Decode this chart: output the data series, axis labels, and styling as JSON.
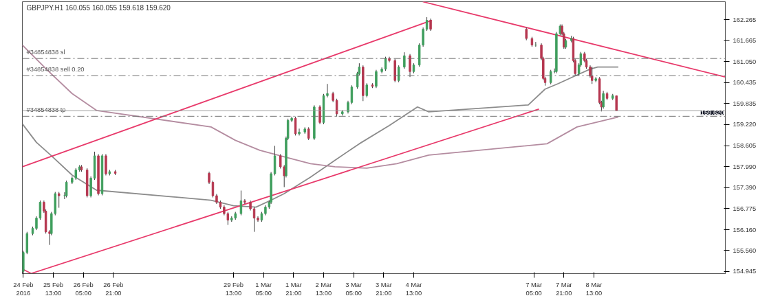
{
  "chart_data": {
    "type": "candlestick",
    "title": "GBPJPY.H1 160.055 160.055 159.618 159.620",
    "x": [
      "2016-02-24T21:00",
      "2016-02-24T23:00",
      "2016-02-25T02:00",
      "2016-02-25T04:00",
      "2016-02-25T06:00",
      "2016-02-25T08:00",
      "2016-02-25T09:00",
      "2016-02-25T11:00",
      "2016-02-25T12:00",
      "2016-02-25T14:00",
      "2016-02-25T16:00",
      "2016-02-25T19:00",
      "2016-02-25T20:00",
      "2016-02-25T23:00",
      "2016-02-26T01:00",
      "2016-02-26T03:00",
      "2016-02-26T04:00",
      "2016-02-26T07:00",
      "2016-02-26T09:00",
      "2016-02-26T11:00",
      "2016-02-26T13:00",
      "2016-02-26T15:00",
      "2016-02-26T17:00",
      "2016-02-26T19:00",
      "2016-02-26T22:00",
      "2016-02-29T00:00",
      "2016-02-29T02:00",
      "2016-02-29T04:00",
      "2016-02-29T06:00",
      "2016-02-29T08:00",
      "2016-02-29T10:00",
      "2016-02-29T12:00",
      "2016-02-29T14:00",
      "2016-02-29T17:00",
      "2016-02-29T19:00",
      "2016-02-29T22:00",
      "2016-03-01T00:00",
      "2016-03-01T02:00",
      "2016-03-01T04:00",
      "2016-03-01T06:00",
      "2016-03-01T08:00",
      "2016-03-01T09:00",
      "2016-03-01T11:00",
      "2016-03-01T14:00",
      "2016-03-01T16:00",
      "2016-03-01T17:00",
      "2016-03-01T18:00",
      "2016-03-01T20:00",
      "2016-03-01T22:00",
      "2016-03-02T00:00",
      "2016-03-02T03:00",
      "2016-03-02T05:00",
      "2016-03-02T08:00",
      "2016-03-02T11:00",
      "2016-03-02T13:00",
      "2016-03-02T15:00",
      "2016-03-02T18:00",
      "2016-03-02T20:00",
      "2016-03-02T23:00",
      "2016-03-03T02:00",
      "2016-03-03T04:00",
      "2016-03-03T07:00",
      "2016-03-03T08:00",
      "2016-03-03T10:00",
      "2016-03-03T12:00",
      "2016-03-03T15:00",
      "2016-03-03T17:00",
      "2016-03-03T20:00",
      "2016-03-03T22:00",
      "2016-03-04T00:00",
      "2016-03-04T03:00",
      "2016-03-04T05:00",
      "2016-03-04T08:00",
      "2016-03-04T11:00",
      "2016-03-04T13:00",
      "2016-03-04T16:00",
      "2016-03-04T18:00",
      "2016-03-04T20:00",
      "2016-03-04T22:00",
      "2016-03-07T01:00",
      "2016-03-07T04:00",
      "2016-03-07T06:00",
      "2016-03-07T09:00",
      "2016-03-07T10:00",
      "2016-03-07T11:00",
      "2016-03-07T14:00",
      "2016-03-07T16:00",
      "2016-03-07T17:00",
      "2016-03-07T19:00",
      "2016-03-07T20:00",
      "2016-03-07T21:00",
      "2016-03-07T22:00",
      "2016-03-08T01:00",
      "2016-03-08T02:00",
      "2016-03-08T03:00",
      "2016-03-08T05:00",
      "2016-03-08T06:00",
      "2016-03-08T08:00",
      "2016-03-08T09:00",
      "2016-03-08T11:00",
      "2016-03-08T12:00",
      "2016-03-08T14:00",
      "2016-03-08T16:00",
      "2016-03-08T17:00",
      "2016-03-08T18:00",
      "2016-03-08T20:00",
      "2016-03-08T23:00",
      "2016-03-09T01:00"
    ],
    "ohlc": [
      [
        154.95,
        155.55,
        154.9,
        155.5
      ],
      [
        155.5,
        156.1,
        155.45,
        156.05
      ],
      [
        156.05,
        156.25,
        156.0,
        156.2
      ],
      [
        156.2,
        156.55,
        156.15,
        156.5
      ],
      [
        156.5,
        157.01,
        156.45,
        156.96
      ],
      [
        156.96,
        157.01,
        156.65,
        156.7
      ],
      [
        156.7,
        156.75,
        156.05,
        156.1
      ],
      [
        156.1,
        156.15,
        155.72,
        156.05
      ],
      [
        156.05,
        156.68,
        156.0,
        156.63
      ],
      [
        156.63,
        157.26,
        156.58,
        157.21
      ],
      [
        157.21,
        157.26,
        156.8,
        157.15
      ],
      [
        157.15,
        157.25,
        157.05,
        157.15
      ],
      [
        157.15,
        157.59,
        157.1,
        157.54
      ],
      [
        157.54,
        157.71,
        157.49,
        157.66
      ],
      [
        157.66,
        157.95,
        157.61,
        157.9
      ],
      [
        157.9,
        158.04,
        157.85,
        157.99
      ],
      [
        157.99,
        158.04,
        157.85,
        157.9
      ],
      [
        157.9,
        157.95,
        157.1,
        157.15
      ],
      [
        157.15,
        157.71,
        157.1,
        157.66
      ],
      [
        157.66,
        158.43,
        157.61,
        158.31
      ],
      [
        158.31,
        158.36,
        157.16,
        157.21
      ],
      [
        157.21,
        158.36,
        157.16,
        158.31
      ],
      [
        158.31,
        158.36,
        157.74,
        157.79
      ],
      [
        157.79,
        157.9,
        157.74,
        157.85
      ],
      [
        157.85,
        157.9,
        157.75,
        157.8
      ],
      [
        157.8,
        157.85,
        157.49,
        157.54
      ],
      [
        157.54,
        157.59,
        157.1,
        157.15
      ],
      [
        157.15,
        157.2,
        156.91,
        156.96
      ],
      [
        156.96,
        157.01,
        156.77,
        156.82
      ],
      [
        156.82,
        156.87,
        156.58,
        156.63
      ],
      [
        156.63,
        156.68,
        156.3,
        156.44
      ],
      [
        156.44,
        156.55,
        156.39,
        156.5
      ],
      [
        156.5,
        156.68,
        156.45,
        156.63
      ],
      [
        156.63,
        157.3,
        156.58,
        157.0
      ],
      [
        157.0,
        157.05,
        156.91,
        156.96
      ],
      [
        156.96,
        157.01,
        156.72,
        156.77
      ],
      [
        156.77,
        156.82,
        156.1,
        156.5
      ],
      [
        156.5,
        156.55,
        156.39,
        156.44
      ],
      [
        156.44,
        156.68,
        156.39,
        156.63
      ],
      [
        156.63,
        156.87,
        156.58,
        156.82
      ],
      [
        156.82,
        157.01,
        156.77,
        156.96
      ],
      [
        156.96,
        157.84,
        156.91,
        157.79
      ],
      [
        157.79,
        158.6,
        157.74,
        158.31
      ],
      [
        158.31,
        158.36,
        157.94,
        157.99
      ],
      [
        157.99,
        158.04,
        157.4,
        157.73
      ],
      [
        157.73,
        158.87,
        157.68,
        158.82
      ],
      [
        158.82,
        159.39,
        158.77,
        159.34
      ],
      [
        159.34,
        159.45,
        159.29,
        159.4
      ],
      [
        159.4,
        159.45,
        158.9,
        158.95
      ],
      [
        158.95,
        159.1,
        158.9,
        159.0
      ],
      [
        159.0,
        159.14,
        158.95,
        159.09
      ],
      [
        159.09,
        159.14,
        158.77,
        158.82
      ],
      [
        158.82,
        159.78,
        158.77,
        159.73
      ],
      [
        159.73,
        159.78,
        159.23,
        159.28
      ],
      [
        159.28,
        160.11,
        159.23,
        160.06
      ],
      [
        160.06,
        160.4,
        160.01,
        160.12
      ],
      [
        160.12,
        160.17,
        159.87,
        159.92
      ],
      [
        159.92,
        159.97,
        159.45,
        159.53
      ],
      [
        159.53,
        159.64,
        159.48,
        159.59
      ],
      [
        159.59,
        159.91,
        159.54,
        159.86
      ],
      [
        159.86,
        160.36,
        159.81,
        160.31
      ],
      [
        160.31,
        160.75,
        160.26,
        160.7
      ],
      [
        160.7,
        161.0,
        160.65,
        160.89
      ],
      [
        160.89,
        160.94,
        159.9,
        160.06
      ],
      [
        160.06,
        160.42,
        160.01,
        160.37
      ],
      [
        160.37,
        160.42,
        160.28,
        160.33
      ],
      [
        160.33,
        160.81,
        160.28,
        160.76
      ],
      [
        160.76,
        160.88,
        160.71,
        160.83
      ],
      [
        160.83,
        161.19,
        160.78,
        161.14
      ],
      [
        161.14,
        161.19,
        161.03,
        161.08
      ],
      [
        161.08,
        161.13,
        160.45,
        160.5
      ],
      [
        160.5,
        160.94,
        160.45,
        160.89
      ],
      [
        160.89,
        161.32,
        160.84,
        161.22
      ],
      [
        161.22,
        161.27,
        160.6,
        160.76
      ],
      [
        160.76,
        161.0,
        160.71,
        160.95
      ],
      [
        160.95,
        161.58,
        160.9,
        161.53
      ],
      [
        161.53,
        162.04,
        161.48,
        161.99
      ],
      [
        161.99,
        162.34,
        161.94,
        162.25
      ],
      [
        162.25,
        162.3,
        161.94,
        161.99
      ],
      [
        161.99,
        162.04,
        161.67,
        161.72
      ],
      [
        161.72,
        161.77,
        161.48,
        161.53
      ],
      [
        161.53,
        161.62,
        161.48,
        161.53
      ],
      [
        161.53,
        161.58,
        161.09,
        161.14
      ],
      [
        161.14,
        161.19,
        160.51,
        160.56
      ],
      [
        160.56,
        160.61,
        160.35,
        160.44
      ],
      [
        160.44,
        160.81,
        160.39,
        160.76
      ],
      [
        160.76,
        160.85,
        160.71,
        160.76
      ],
      [
        160.76,
        161.91,
        160.71,
        161.86
      ],
      [
        161.86,
        162.13,
        161.81,
        162.08
      ],
      [
        162.08,
        162.13,
        161.81,
        161.86
      ],
      [
        161.86,
        161.91,
        161.42,
        161.47
      ],
      [
        161.47,
        161.71,
        161.42,
        161.66
      ],
      [
        161.66,
        161.8,
        161.61,
        161.72
      ],
      [
        161.72,
        161.77,
        161.03,
        161.08
      ],
      [
        161.08,
        161.13,
        160.65,
        160.7
      ],
      [
        160.7,
        161.0,
        160.65,
        160.95
      ],
      [
        160.95,
        161.33,
        160.9,
        161.28
      ],
      [
        161.28,
        161.33,
        161.03,
        161.08
      ],
      [
        161.08,
        161.13,
        160.84,
        160.89
      ],
      [
        160.89,
        160.94,
        160.58,
        160.63
      ],
      [
        160.63,
        160.9,
        160.4,
        160.5
      ],
      [
        160.5,
        160.6,
        160.45,
        160.55
      ],
      [
        160.55,
        160.6,
        159.81,
        159.86
      ],
      [
        159.86,
        159.91,
        159.6,
        159.73
      ],
      [
        159.73,
        160.2,
        159.68,
        160.12
      ],
      [
        160.12,
        160.17,
        159.93,
        159.98
      ],
      [
        159.98,
        160.11,
        159.93,
        160.06
      ],
      [
        160.055,
        160.055,
        159.618,
        159.62
      ]
    ],
    "colors": [
      "#3f9e5d",
      "#3f9e5d",
      "#3f9e5d",
      "#3f9e5d",
      "#3f9e5d",
      "#b5364f",
      "#b5364f",
      "#b5364f",
      "#3f9e5d",
      "#3f9e5d",
      "#b5364f",
      "#3f9e5d",
      "#3f9e5d",
      "#3f9e5d",
      "#3f9e5d",
      "#3f9e5d",
      "#b5364f",
      "#b5364f",
      "#3f9e5d",
      "#3f9e5d",
      "#b5364f",
      "#3f9e5d",
      "#b5364f",
      "#3f9e5d",
      "#b5364f",
      "#b5364f",
      "#b5364f",
      "#b5364f",
      "#b5364f",
      "#b5364f",
      "#b5364f",
      "#3f9e5d",
      "#3f9e5d",
      "#3f9e5d",
      "#b5364f",
      "#b5364f",
      "#b5364f",
      "#b5364f",
      "#3f9e5d",
      "#3f9e5d",
      "#3f9e5d",
      "#3f9e5d",
      "#3f9e5d",
      "#b5364f",
      "#b5364f",
      "#3f9e5d",
      "#3f9e5d",
      "#3f9e5d",
      "#b5364f",
      "#3f9e5d",
      "#3f9e5d",
      "#b5364f",
      "#3f9e5d",
      "#b5364f",
      "#3f9e5d",
      "#3f9e5d",
      "#b5364f",
      "#b5364f",
      "#3f9e5d",
      "#3f9e5d",
      "#3f9e5d",
      "#3f9e5d",
      "#3f9e5d",
      "#b5364f",
      "#3f9e5d",
      "#b5364f",
      "#3f9e5d",
      "#3f9e5d",
      "#3f9e5d",
      "#b5364f",
      "#b5364f",
      "#3f9e5d",
      "#3f9e5d",
      "#b5364f",
      "#3f9e5d",
      "#3f9e5d",
      "#3f9e5d",
      "#3f9e5d",
      "#b5364f",
      "#b5364f",
      "#b5364f",
      "#3f9e5d",
      "#b5364f",
      "#b5364f",
      "#b5364f",
      "#3f9e5d",
      "#3f9e5d",
      "#3f9e5d",
      "#3f9e5d",
      "#b5364f",
      "#b5364f",
      "#3f9e5d",
      "#3f9e5d",
      "#b5364f",
      "#b5364f",
      "#3f9e5d",
      "#3f9e5d",
      "#b5364f",
      "#b5364f",
      "#b5364f",
      "#b5364f",
      "#3f9e5d",
      "#b5364f",
      "#b5364f",
      "#3f9e5d",
      "#b5364f",
      "#3f9e5d",
      "#b5364f"
    ],
    "series": [
      {
        "type": "line",
        "color": "#8c8c8c",
        "x": [
          "2016-02-24T20:30",
          "2016-02-25T04:00",
          "2016-02-25T12:00",
          "2016-02-25T23:00",
          "2016-02-26T12:00",
          "2016-02-29T01:00",
          "2016-02-29T13:00",
          "2016-03-01T01:00",
          "2016-03-01T09:00",
          "2016-03-01T16:00",
          "2016-03-02T06:00",
          "2016-03-02T19:00",
          "2016-03-03T08:00",
          "2016-03-04T00:00",
          "2016-03-04T15:00",
          "2016-03-04T21:00",
          "2016-03-07T02:00",
          "2016-03-07T11:00",
          "2016-03-07T18:00",
          "2016-03-08T04:00",
          "2016-03-08T11:00",
          "2016-03-08T15:00",
          "2016-03-09T02:00"
        ],
        "values": [
          159.24,
          158.7,
          158.31,
          157.75,
          157.31,
          157.02,
          156.86,
          156.82,
          157.02,
          157.21,
          157.69,
          158.18,
          158.66,
          159.19,
          159.73,
          159.59,
          159.79,
          160.25,
          160.41,
          160.66,
          160.83,
          160.89,
          160.89
        ]
      },
      {
        "type": "line",
        "color": "#b48ca0",
        "x": [
          "2016-02-24T20:30",
          "2016-02-25T10:00",
          "2016-02-25T23:00",
          "2016-02-26T12:00",
          "2016-02-29T01:00",
          "2016-02-29T14:00",
          "2016-03-01T03:00",
          "2016-03-01T16:00",
          "2016-03-02T06:00",
          "2016-03-02T19:00",
          "2016-03-03T12:00",
          "2016-03-04T04:00",
          "2016-03-04T21:00",
          "2016-03-07T12:00",
          "2016-03-08T04:00",
          "2016-03-09T02:00"
        ],
        "values": [
          161.53,
          160.79,
          160.12,
          159.63,
          159.15,
          158.76,
          158.47,
          158.28,
          158.08,
          157.99,
          157.95,
          158.08,
          158.33,
          158.66,
          159.15,
          159.44
        ]
      },
      {
        "type": "line",
        "color": "#e83a6b",
        "x": [
          "2016-02-24T20:30",
          "2016-03-04T22:36"
        ],
        "values": [
          157.99,
          162.25
        ]
      },
      {
        "type": "line",
        "color": "#e83a6b",
        "x": [
          "2016-02-25T01:12",
          "2016-03-07T07:42"
        ],
        "values": [
          154.89,
          159.67
        ]
      },
      {
        "type": "line",
        "color": "#e83a6b",
        "x": [
          "2016-02-24T20:30",
          "2016-02-25T01:12"
        ],
        "values": [
          155.02,
          154.89
        ]
      },
      {
        "type": "line",
        "color": "#e83a6b",
        "x": [
          "2016-03-04T17:48",
          "2016-03-11T11:00"
        ],
        "values": [
          162.79,
          160.6
        ]
      }
    ],
    "ref_lines": [
      {
        "axis": "y",
        "value": 161.14,
        "label": "#34854838 sl",
        "color": "#707070",
        "line_style": "dashed"
      },
      {
        "axis": "y",
        "value": 160.64,
        "label": "#34854838 sell 0.20",
        "color": "#707070",
        "line_style": "dashed"
      },
      {
        "axis": "y",
        "value": 159.46,
        "label": "#34854838 tp",
        "color": "#707070",
        "line_style": "dashed"
      },
      {
        "axis": "y",
        "value": 159.62,
        "label": "159.620",
        "color": "#9a9a9a",
        "line_style": "solid"
      }
    ],
    "xlim": [
      "2016-02-24T20:30",
      "2016-03-11T11:00"
    ],
    "ylim": [
      154.885,
      162.79
    ],
    "xticks": [
      {
        "value": "2016-02-24T21:00",
        "label": "24 Feb 2016"
      },
      {
        "value": "2016-02-25T13:00",
        "label": "25 Feb 13:00"
      },
      {
        "value": "2016-02-26T05:00",
        "label": "26 Feb 05:00"
      },
      {
        "value": "2016-02-26T21:00",
        "label": "26 Feb 21:00"
      },
      {
        "value": "2016-02-29T13:00",
        "label": "29 Feb 13:00"
      },
      {
        "value": "2016-03-01T05:00",
        "label": "1 Mar 05:00"
      },
      {
        "value": "2016-03-01T21:00",
        "label": "1 Mar 21:00"
      },
      {
        "value": "2016-03-02T13:00",
        "label": "2 Mar 13:00"
      },
      {
        "value": "2016-03-03T05:00",
        "label": "3 Mar 05:00"
      },
      {
        "value": "2016-03-03T21:00",
        "label": "3 Mar 21:00"
      },
      {
        "value": "2016-03-04T13:00",
        "label": "4 Mar 13:00"
      },
      {
        "value": "2016-03-07T05:00",
        "label": "7 Mar 05:00"
      },
      {
        "value": "2016-03-07T21:00",
        "label": "7 Mar 21:00"
      },
      {
        "value": "2016-03-08T13:00",
        "label": "8 Mar 13:00"
      }
    ],
    "yticks": [
      162.265,
      161.665,
      {
        "value": 161.05,
        "label": "161.050"
      },
      160.435,
      159.835,
      {
        "value": 159.22,
        "label": "159.220"
      },
      158.605,
      {
        "value": 157.99,
        "label": "157.990"
      },
      {
        "value": 157.39,
        "label": "157.390"
      },
      156.775,
      {
        "value": 156.16,
        "label": "156.160"
      },
      {
        "value": 155.56,
        "label": "155.560"
      },
      154.945
    ],
    "grid": false
  }
}
